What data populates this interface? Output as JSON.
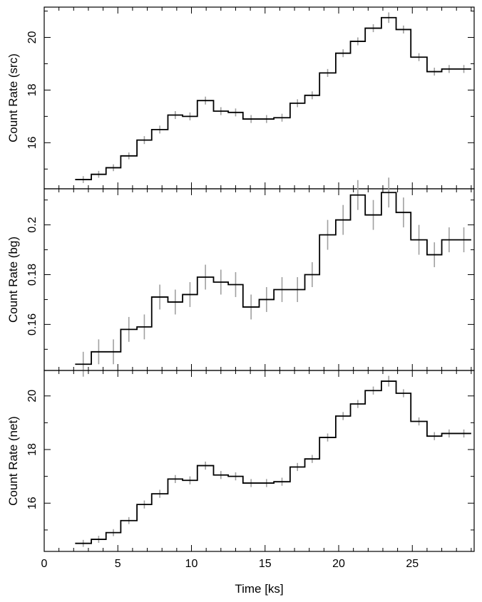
{
  "chart_data": [
    {
      "type": "line",
      "style": "step-with-error-bars",
      "ylabel": "Count Rate (src)",
      "xlabel": "",
      "xlim": [
        0,
        29.2
      ],
      "ylim": [
        14.25,
        21.15
      ],
      "x_ticks": [
        0,
        5,
        10,
        15,
        20,
        25
      ],
      "x_tick_labels": [
        "",
        "",
        "",
        "",
        "",
        ""
      ],
      "y_ticks": [
        16,
        18,
        20
      ],
      "y_tick_labels": [
        "16",
        "18",
        "20"
      ],
      "bin_edges": [
        2.1,
        3.2,
        4.2,
        5.2,
        6.3,
        7.3,
        8.4,
        9.4,
        10.4,
        11.5,
        12.5,
        13.5,
        14.6,
        15.6,
        16.7,
        17.7,
        18.7,
        19.8,
        20.8,
        21.8,
        22.9,
        23.9,
        24.9,
        26.0,
        27.0,
        28.0,
        29.0
      ],
      "values": [
        14.6,
        14.8,
        15.05,
        15.5,
        16.1,
        16.5,
        17.05,
        17.0,
        17.6,
        17.2,
        17.15,
        16.9,
        16.9,
        16.95,
        17.5,
        17.8,
        18.65,
        19.4,
        19.85,
        20.35,
        20.75,
        20.3,
        19.25,
        18.7,
        18.8,
        18.8
      ],
      "errors": [
        0.13,
        0.13,
        0.13,
        0.13,
        0.15,
        0.15,
        0.15,
        0.15,
        0.15,
        0.15,
        0.15,
        0.15,
        0.15,
        0.15,
        0.15,
        0.15,
        0.15,
        0.15,
        0.15,
        0.15,
        0.2,
        0.15,
        0.15,
        0.15,
        0.15,
        0.15
      ]
    },
    {
      "type": "line",
      "style": "step-with-error-bars",
      "ylabel": "Count Rate (bg)",
      "xlabel": "",
      "xlim": [
        0,
        29.2
      ],
      "ylim": [
        0.1415,
        0.2145
      ],
      "x_ticks": [
        0,
        5,
        10,
        15,
        20,
        25
      ],
      "x_tick_labels": [
        "",
        "",
        "",
        "",
        "",
        ""
      ],
      "y_ticks": [
        0.16,
        0.18,
        0.2
      ],
      "y_tick_labels": [
        "0.16",
        "0.18",
        "0.2"
      ],
      "bin_edges": [
        2.1,
        3.2,
        4.2,
        5.2,
        6.3,
        7.3,
        8.4,
        9.4,
        10.4,
        11.5,
        12.5,
        13.5,
        14.6,
        15.6,
        16.7,
        17.7,
        18.7,
        19.8,
        20.8,
        21.8,
        22.9,
        23.9,
        24.9,
        26.0,
        27.0,
        28.0,
        29.0
      ],
      "values": [
        0.144,
        0.149,
        0.149,
        0.158,
        0.159,
        0.171,
        0.169,
        0.172,
        0.179,
        0.177,
        0.176,
        0.167,
        0.17,
        0.174,
        0.174,
        0.18,
        0.196,
        0.202,
        0.212,
        0.204,
        0.213,
        0.205,
        0.194,
        0.188,
        0.194,
        0.194
      ],
      "errors": [
        0.005,
        0.005,
        0.005,
        0.005,
        0.005,
        0.005,
        0.005,
        0.005,
        0.005,
        0.005,
        0.005,
        0.005,
        0.005,
        0.005,
        0.005,
        0.005,
        0.006,
        0.006,
        0.006,
        0.006,
        0.006,
        0.006,
        0.006,
        0.005,
        0.005,
        0.005
      ]
    },
    {
      "type": "line",
      "style": "step-with-error-bars",
      "ylabel": "Count Rate (net)",
      "xlabel": "Time [ks]",
      "xlim": [
        0,
        29.2
      ],
      "ylim": [
        14.2,
        20.95
      ],
      "x_ticks": [
        0,
        5,
        10,
        15,
        20,
        25
      ],
      "x_tick_labels": [
        "0",
        "5",
        "10",
        "15",
        "20",
        "25"
      ],
      "y_ticks": [
        16,
        18,
        20
      ],
      "y_tick_labels": [
        "16",
        "18",
        "20"
      ],
      "bin_edges": [
        2.1,
        3.2,
        4.2,
        5.2,
        6.3,
        7.3,
        8.4,
        9.4,
        10.4,
        11.5,
        12.5,
        13.5,
        14.6,
        15.6,
        16.7,
        17.7,
        18.7,
        19.8,
        20.8,
        21.8,
        22.9,
        23.9,
        24.9,
        26.0,
        27.0,
        28.0,
        29.0
      ],
      "values": [
        14.5,
        14.65,
        14.9,
        15.35,
        15.95,
        16.35,
        16.9,
        16.85,
        17.4,
        17.05,
        17.0,
        16.75,
        16.75,
        16.8,
        17.35,
        17.65,
        18.45,
        19.25,
        19.7,
        20.2,
        20.55,
        20.1,
        19.05,
        18.5,
        18.6,
        18.6
      ],
      "errors": [
        0.13,
        0.13,
        0.13,
        0.13,
        0.15,
        0.15,
        0.15,
        0.15,
        0.15,
        0.15,
        0.15,
        0.15,
        0.15,
        0.15,
        0.15,
        0.15,
        0.15,
        0.15,
        0.15,
        0.15,
        0.2,
        0.15,
        0.15,
        0.15,
        0.15,
        0.15
      ]
    }
  ],
  "colors": {
    "step_line": "#000000",
    "error_bar": "#a0a0a0",
    "frame": "#000000"
  }
}
